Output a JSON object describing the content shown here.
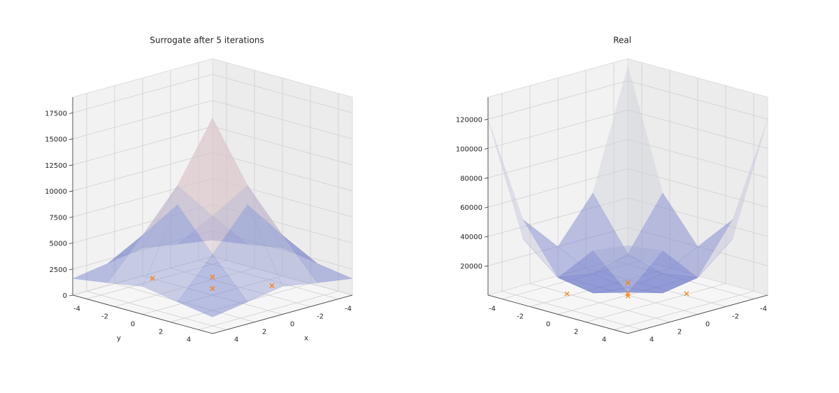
{
  "chart_data": [
    {
      "type": "surface",
      "title": "Surrogate after 5 iterations",
      "xlabel": "x",
      "ylabel": "y",
      "x_grid": [
        -5,
        -2.5,
        0,
        2.5,
        5
      ],
      "y_grid": [
        -5,
        -2.5,
        0,
        2.5,
        5
      ],
      "z": [
        [
          1590,
          2110,
          2670,
          2110,
          1590
        ],
        [
          2110,
          5760,
          9620,
          5760,
          2110
        ],
        [
          2670,
          9620,
          17000,
          9620,
          2670
        ],
        [
          2110,
          5760,
          9620,
          5760,
          2110
        ],
        [
          1590,
          2110,
          2670,
          2110,
          1590
        ]
      ],
      "xlim": [
        -5,
        5
      ],
      "ylim": [
        -5,
        5
      ],
      "zlim": [
        0,
        19000
      ],
      "xticks": [
        -4,
        -2,
        0,
        2,
        4
      ],
      "yticks": [
        -4,
        -2,
        0,
        2,
        4
      ],
      "zticks": [
        0,
        2500,
        5000,
        7500,
        10000,
        12500,
        15000,
        17500
      ],
      "points": {
        "x": [
          2,
          -1,
          0.5,
          -2
        ],
        "y": [
          -2.3,
          -1,
          0.5,
          2.25
        ],
        "z": [
          1500,
          1000,
          1000,
          1000
        ]
      },
      "point_color": "#ff7f0e"
    },
    {
      "type": "surface",
      "title": "Real",
      "x_grid": [
        -5,
        -2.5,
        0,
        2.5,
        5
      ],
      "y_grid": [
        -5,
        -2.5,
        0,
        2.5,
        5
      ],
      "z": [
        [
          130000,
          50000,
          20000,
          45000,
          120000
        ],
        [
          50000,
          15000,
          8000,
          12000,
          45000
        ],
        [
          20000,
          8000,
          5000,
          8000,
          25000
        ],
        [
          45000,
          12000,
          8000,
          15000,
          50000
        ],
        [
          120000,
          45000,
          25000,
          50000,
          60000
        ]
      ],
      "xlim": [
        -5,
        5
      ],
      "ylim": [
        -5,
        5
      ],
      "zlim": [
        0,
        135000
      ],
      "xticks": [
        -4,
        -2,
        0,
        2,
        4
      ],
      "yticks": [
        -4,
        -2,
        0,
        2,
        4
      ],
      "zticks": [
        20000,
        40000,
        60000,
        80000,
        100000,
        120000
      ],
      "points": {
        "x": [
          2.2,
          -1.4,
          0,
          0.5,
          -2.1
        ],
        "y": [
          -2.15,
          -1.4,
          0,
          0.5,
          2.1
        ],
        "z": [
          1000,
          1000,
          1000,
          2000,
          1000
        ]
      },
      "point_color": "#ff7f0e"
    }
  ]
}
